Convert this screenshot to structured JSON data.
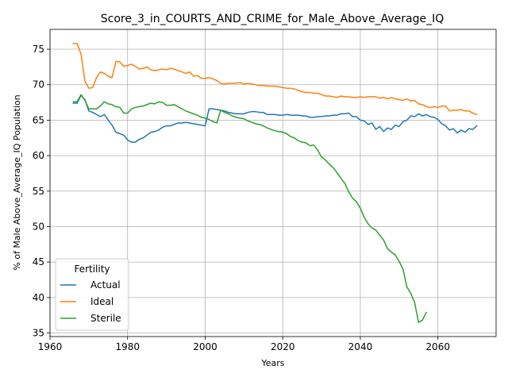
{
  "chart_data": {
    "type": "line",
    "title": "Score_3_in_COURTS_AND_CRIME_for_Male_Above_Average_IQ",
    "xlabel": "Years",
    "ylabel": "% of Male Above_Average_IQ Population",
    "xlim": [
      1960,
      2075
    ],
    "ylim": [
      34.5,
      77.8
    ],
    "xticks": [
      1960,
      1980,
      2000,
      2020,
      2040,
      2060
    ],
    "yticks": [
      35,
      40,
      45,
      50,
      55,
      60,
      65,
      70,
      75
    ],
    "grid": true,
    "legend": {
      "title": "Fertility",
      "placement": "bottom-left"
    },
    "series": [
      {
        "name": "Actual",
        "color": "#1f77b4",
        "x": [
          1966,
          1967,
          1968,
          1969,
          1970,
          1971,
          1972,
          1973,
          1974,
          1975,
          1976,
          1977,
          1978,
          1979,
          1980,
          1981,
          1982,
          1983,
          1984,
          1985,
          1986,
          1987,
          1988,
          1989,
          1990,
          1991,
          1992,
          1993,
          1994,
          1995,
          1996,
          1997,
          1998,
          1999,
          2000,
          2001,
          2002,
          2003,
          2004,
          2005,
          2006,
          2007,
          2008,
          2009,
          2010,
          2011,
          2012,
          2013,
          2014,
          2015,
          2016,
          2017,
          2018,
          2019,
          2020,
          2021,
          2022,
          2023,
          2024,
          2025,
          2026,
          2027,
          2028,
          2029,
          2030,
          2031,
          2032,
          2033,
          2034,
          2035,
          2036,
          2037,
          2038,
          2039,
          2040,
          2041,
          2042,
          2043,
          2044,
          2045,
          2046,
          2047,
          2048,
          2049,
          2050,
          2051,
          2052,
          2053,
          2054,
          2055,
          2056,
          2057,
          2058,
          2059,
          2060,
          2061,
          2062,
          2063,
          2064,
          2065,
          2066,
          2067,
          2068,
          2069,
          2070
        ],
        "y": [
          67.4,
          67.4,
          68.5,
          67.9,
          66.3,
          66.1,
          65.8,
          65.5,
          65.8,
          65.0,
          64.3,
          63.3,
          63.1,
          62.9,
          62.2,
          61.9,
          61.9,
          62.3,
          62.5,
          62.9,
          63.3,
          63.4,
          63.6,
          64.0,
          64.2,
          64.2,
          64.4,
          64.6,
          64.6,
          64.7,
          64.6,
          64.5,
          64.4,
          64.3,
          64.2,
          66.6,
          66.6,
          66.5,
          66.4,
          66.3,
          66.1,
          66.0,
          65.9,
          65.9,
          65.9,
          66.1,
          66.2,
          66.2,
          66.1,
          66.1,
          65.8,
          65.8,
          65.8,
          65.7,
          65.7,
          65.8,
          65.7,
          65.7,
          65.7,
          65.6,
          65.6,
          65.4,
          65.4,
          65.5,
          65.5,
          65.6,
          65.6,
          65.7,
          65.7,
          65.9,
          65.9,
          66.0,
          65.5,
          65.5,
          65.0,
          64.9,
          64.4,
          64.6,
          63.7,
          64.1,
          63.4,
          63.9,
          63.7,
          64.3,
          64.1,
          64.8,
          65.0,
          65.6,
          65.5,
          65.9,
          65.6,
          65.8,
          65.5,
          65.4,
          65.1,
          64.5,
          64.2,
          63.6,
          63.8,
          63.2,
          63.6,
          63.3,
          63.8,
          63.7,
          64.2
        ]
      },
      {
        "name": "Ideal",
        "color": "#ff7f0e",
        "x": [
          1966,
          1967,
          1968,
          1969,
          1970,
          1971,
          1972,
          1973,
          1974,
          1975,
          1976,
          1977,
          1978,
          1979,
          1980,
          1981,
          1982,
          1983,
          1984,
          1985,
          1986,
          1987,
          1988,
          1989,
          1990,
          1991,
          1992,
          1993,
          1994,
          1995,
          1996,
          1997,
          1998,
          1999,
          2000,
          2001,
          2002,
          2003,
          2004,
          2005,
          2006,
          2007,
          2008,
          2009,
          2010,
          2011,
          2012,
          2013,
          2014,
          2015,
          2016,
          2017,
          2018,
          2019,
          2020,
          2021,
          2022,
          2023,
          2024,
          2025,
          2026,
          2027,
          2028,
          2029,
          2030,
          2031,
          2032,
          2033,
          2034,
          2035,
          2036,
          2037,
          2038,
          2039,
          2040,
          2041,
          2042,
          2043,
          2044,
          2045,
          2046,
          2047,
          2048,
          2049,
          2050,
          2051,
          2052,
          2053,
          2054,
          2055,
          2056,
          2057,
          2058,
          2059,
          2060,
          2061,
          2062,
          2063,
          2064,
          2065,
          2066,
          2067,
          2068,
          2069,
          2070
        ],
        "y": [
          75.8,
          75.8,
          74.3,
          70.5,
          69.5,
          69.6,
          71.0,
          71.8,
          71.6,
          71.2,
          71.0,
          73.3,
          73.2,
          72.6,
          72.7,
          72.9,
          72.6,
          72.2,
          72.3,
          72.5,
          72.1,
          72.0,
          72.1,
          72.2,
          72.1,
          72.3,
          72.2,
          72.0,
          71.8,
          71.6,
          71.8,
          71.2,
          71.3,
          70.9,
          70.9,
          71.0,
          70.8,
          70.6,
          70.2,
          70.1,
          70.2,
          70.2,
          70.2,
          70.3,
          70.1,
          70.2,
          70.1,
          70.0,
          69.9,
          69.9,
          69.8,
          69.8,
          69.8,
          69.7,
          69.6,
          69.5,
          69.5,
          69.4,
          69.2,
          69.0,
          68.9,
          68.9,
          68.8,
          68.8,
          68.6,
          68.4,
          68.4,
          68.3,
          68.2,
          68.4,
          68.3,
          68.3,
          68.2,
          68.2,
          68.3,
          68.2,
          68.3,
          68.3,
          68.3,
          68.1,
          68.2,
          68.0,
          68.2,
          68.0,
          67.9,
          67.8,
          68.0,
          67.7,
          67.8,
          67.3,
          67.2,
          66.9,
          66.8,
          66.9,
          66.8,
          67.0,
          67.0,
          66.3,
          66.4,
          66.4,
          66.5,
          66.3,
          66.3,
          66.0,
          65.8
        ]
      },
      {
        "name": "Sterile",
        "color": "#2ca02c",
        "x": [
          1966,
          1967,
          1968,
          1969,
          1970,
          1971,
          1972,
          1973,
          1974,
          1975,
          1976,
          1977,
          1978,
          1979,
          1980,
          1981,
          1982,
          1983,
          1984,
          1985,
          1986,
          1987,
          1988,
          1989,
          1990,
          1991,
          1992,
          1993,
          1994,
          1995,
          1996,
          1997,
          1998,
          1999,
          2000,
          2001,
          2002,
          2003,
          2004,
          2005,
          2006,
          2007,
          2008,
          2009,
          2010,
          2011,
          2012,
          2013,
          2014,
          2015,
          2016,
          2017,
          2018,
          2019,
          2020,
          2021,
          2022,
          2023,
          2024,
          2025,
          2026,
          2027,
          2028,
          2029,
          2030,
          2031,
          2032,
          2033,
          2034,
          2035,
          2036,
          2037,
          2038,
          2039,
          2040,
          2041,
          2042,
          2043,
          2044,
          2045,
          2046,
          2047,
          2048,
          2049,
          2050,
          2051,
          2052,
          2053,
          2054,
          2055,
          2056,
          2057
        ],
        "y": [
          67.6,
          67.6,
          68.6,
          67.8,
          66.6,
          66.6,
          66.6,
          67.0,
          67.6,
          67.3,
          67.2,
          66.9,
          66.8,
          66.0,
          66.0,
          66.6,
          66.8,
          66.9,
          67.0,
          67.2,
          67.4,
          67.3,
          67.6,
          67.5,
          67.1,
          67.1,
          67.2,
          66.9,
          66.6,
          66.3,
          66.1,
          65.9,
          65.7,
          65.4,
          65.3,
          65.1,
          64.8,
          64.6,
          66.4,
          66.1,
          65.9,
          65.6,
          65.4,
          65.3,
          65.2,
          64.9,
          64.7,
          64.5,
          64.4,
          64.2,
          63.9,
          63.7,
          63.5,
          63.4,
          63.3,
          63.1,
          62.7,
          62.5,
          62.1,
          61.9,
          61.8,
          61.4,
          61.5,
          60.8,
          59.8,
          59.4,
          58.8,
          58.3,
          57.6,
          56.8,
          56.1,
          54.9,
          54.0,
          53.5,
          52.6,
          51.3,
          50.4,
          49.8,
          49.5,
          48.8,
          48.1,
          46.9,
          46.4,
          46.0,
          45.1,
          44.0,
          41.5,
          40.6,
          39.3,
          36.5,
          36.8,
          37.9
        ]
      }
    ]
  }
}
